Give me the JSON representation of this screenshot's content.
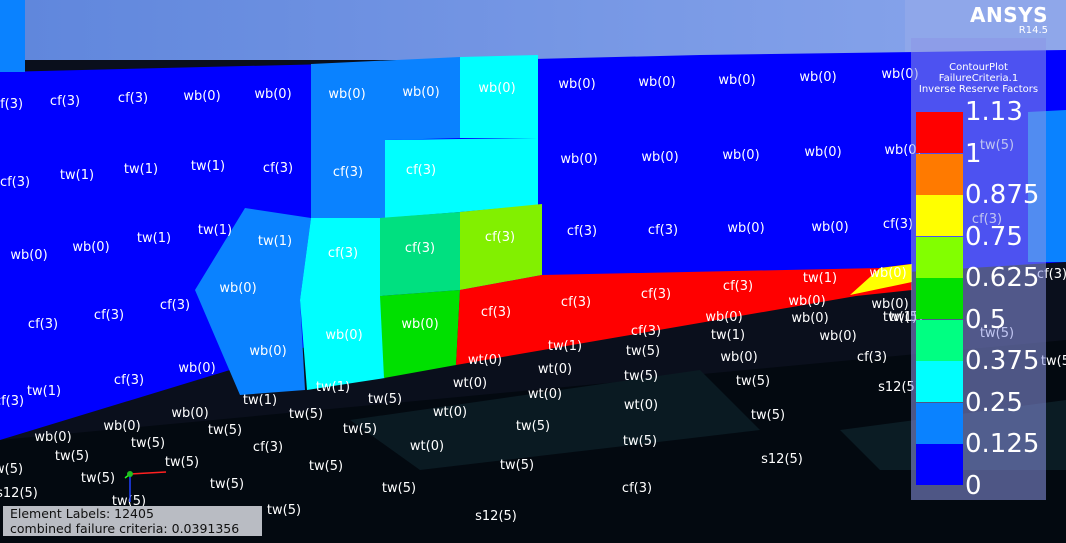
{
  "branding": {
    "name": "ANSYS",
    "version": "R14.5"
  },
  "legend": {
    "title_lines": [
      "ContourPlot",
      "FailureCriteria.1",
      "Inverse Reserve Factors"
    ],
    "labels": [
      "1.13",
      "1",
      "0.875",
      "0.75",
      "0.625",
      "0.5",
      "0.375",
      "0.25",
      "0.125",
      "0"
    ],
    "band_colors": [
      "#ff0000",
      "#ff7a00",
      "#ffff00",
      "#82ff00",
      "#00e000",
      "#00ff82",
      "#00ffff",
      "#0a82ff",
      "#0000ff"
    ]
  },
  "element_labels": [
    {
      "text": "cf(3)"
    },
    {
      "text": "cf(3)"
    },
    {
      "text": "cf(3)"
    },
    {
      "text": "wb(0)"
    },
    {
      "text": "wb(0)"
    },
    {
      "text": "wb(0)"
    },
    {
      "text": "wb(0)"
    },
    {
      "text": "wb(0)"
    },
    {
      "text": "wb(0)"
    },
    {
      "text": "wb(0)"
    },
    {
      "text": "wb(0)"
    },
    {
      "text": "wb(0)"
    },
    {
      "text": "wb(0)"
    },
    {
      "text": "cf(3)"
    },
    {
      "text": "tw(1)"
    },
    {
      "text": "tw(1)"
    },
    {
      "text": "tw(1)"
    },
    {
      "text": "cf(3)"
    },
    {
      "text": "cf(3)"
    },
    {
      "text": "cf(3)"
    },
    {
      "text": "wb(0)"
    },
    {
      "text": "wb(0)"
    },
    {
      "text": "wb(0)"
    },
    {
      "text": "wb(0)"
    },
    {
      "text": "wb(0)"
    },
    {
      "text": "wb(0)"
    },
    {
      "text": "wb(0)"
    },
    {
      "text": "tw(1)"
    },
    {
      "text": "tw(1)"
    },
    {
      "text": "tw(1)"
    },
    {
      "text": "cf(3)"
    },
    {
      "text": "cf(3)"
    },
    {
      "text": "cf(3)"
    },
    {
      "text": "cf(3)"
    },
    {
      "text": "cf(3)"
    },
    {
      "text": "wb(0)"
    },
    {
      "text": "wb(0)"
    },
    {
      "text": "wb(0)"
    },
    {
      "text": "wb(0)"
    },
    {
      "text": "wb(0)"
    },
    {
      "text": "cf(3)"
    },
    {
      "text": "cf(3)"
    },
    {
      "text": "cf(3)"
    },
    {
      "text": "cf(3)"
    },
    {
      "text": "cf(3)"
    },
    {
      "text": "cf(3)"
    },
    {
      "text": "cf(3)"
    },
    {
      "text": "wb(0)"
    },
    {
      "text": "tw(1)"
    },
    {
      "text": "tw(1)"
    },
    {
      "text": "cf(3)"
    },
    {
      "text": "cf(3)"
    },
    {
      "text": "cf(3)"
    },
    {
      "text": "wb(0)"
    },
    {
      "text": "wb(0)"
    },
    {
      "text": "wb(0)"
    },
    {
      "text": "wb(0)"
    },
    {
      "text": "wb(0)"
    },
    {
      "text": "wb(0)"
    },
    {
      "text": "wb(0)"
    },
    {
      "text": "wb(0)"
    },
    {
      "text": "cf(3)"
    },
    {
      "text": "tw(1)"
    },
    {
      "text": "tw(1)"
    },
    {
      "text": "tw(1)"
    },
    {
      "text": "tw(1)"
    },
    {
      "text": "tw(1)"
    },
    {
      "text": "wb(0)"
    },
    {
      "text": "wb(0)"
    },
    {
      "text": "wb(0)"
    },
    {
      "text": "wt(0)"
    },
    {
      "text": "wt(0)"
    },
    {
      "text": "wt(0)"
    },
    {
      "text": "tw(5)"
    },
    {
      "text": "tw(5)"
    },
    {
      "text": "tw(5)"
    },
    {
      "text": "tw(5)"
    },
    {
      "text": "tw(5)"
    },
    {
      "text": "wt(0)"
    },
    {
      "text": "wt(0)"
    },
    {
      "text": "wt(0)"
    },
    {
      "text": "tw(5)"
    },
    {
      "text": "tw(5)"
    },
    {
      "text": "tw(5)"
    },
    {
      "text": "tw(5)"
    },
    {
      "text": "tw(5)"
    },
    {
      "text": "tw(5)"
    },
    {
      "text": "cf(3)"
    },
    {
      "text": "wt(0)"
    },
    {
      "text": "tw(5)"
    },
    {
      "text": "tw(5)"
    },
    {
      "text": "s12(5)"
    },
    {
      "text": "tw(5)"
    },
    {
      "text": "tw(5)"
    },
    {
      "text": "tw(5)"
    },
    {
      "text": "tw(5)"
    },
    {
      "text": "s12(5)"
    },
    {
      "text": "tw(5)"
    },
    {
      "text": "tw(5)"
    },
    {
      "text": "s12(5)"
    },
    {
      "text": "tw(5)"
    },
    {
      "text": "tw(5)"
    },
    {
      "text": "cf(3)"
    },
    {
      "text": "s12(5)"
    },
    {
      "text": "tw(5)"
    },
    {
      "text": "tw(5)"
    },
    {
      "text": "cf(3)"
    },
    {
      "text": "tw(5)"
    },
    {
      "text": "tw(5)"
    },
    {
      "text": "cf(3)"
    },
    {
      "text": "tw(5)"
    },
    {
      "text": "tw(5)"
    },
    {
      "text": "cf(3)"
    },
    {
      "text": "wb(0)"
    },
    {
      "text": "tw(5)"
    },
    {
      "text": "cf(3)"
    }
  ],
  "info": {
    "line1": "Element Labels: 12405",
    "line2": "combined failure criteria: 0.0391356"
  }
}
